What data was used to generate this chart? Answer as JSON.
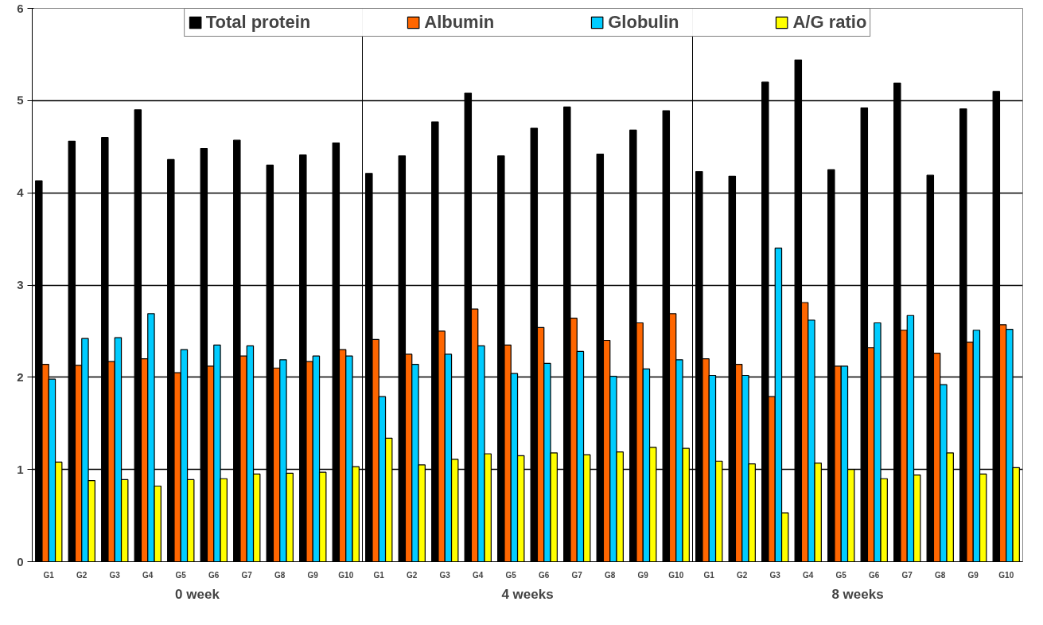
{
  "chart_data": {
    "type": "bar",
    "categories": [
      "G1",
      "G2",
      "G3",
      "G4",
      "G5",
      "G6",
      "G7",
      "G8",
      "G9",
      "G10",
      "G1",
      "G2",
      "G3",
      "G4",
      "G5",
      "G6",
      "G7",
      "G8",
      "G9",
      "G10",
      "G1",
      "G2",
      "G3",
      "G4",
      "G5",
      "G6",
      "G7",
      "G8",
      "G9",
      "G10"
    ],
    "series": [
      {
        "name": "Total protein",
        "color": "#000000",
        "values": [
          4.13,
          4.56,
          4.6,
          4.9,
          4.36,
          4.48,
          4.57,
          4.3,
          4.41,
          4.54,
          4.21,
          4.4,
          4.77,
          5.08,
          4.4,
          4.7,
          4.93,
          4.42,
          4.68,
          4.89,
          4.23,
          4.18,
          5.2,
          5.44,
          4.25,
          4.92,
          5.19,
          4.19,
          4.91,
          5.1
        ]
      },
      {
        "name": "Albumin",
        "color": "#ff6600",
        "values": [
          2.14,
          2.13,
          2.17,
          2.2,
          2.05,
          2.12,
          2.23,
          2.1,
          2.17,
          2.3,
          2.41,
          2.25,
          2.5,
          2.74,
          2.35,
          2.54,
          2.64,
          2.4,
          2.59,
          2.69,
          2.2,
          2.14,
          1.79,
          2.81,
          2.12,
          2.32,
          2.51,
          2.26,
          2.38,
          2.57
        ]
      },
      {
        "name": "Globulin",
        "color": "#00ccff",
        "values": [
          1.98,
          2.42,
          2.43,
          2.69,
          2.3,
          2.35,
          2.34,
          2.19,
          2.23,
          2.23,
          1.79,
          2.14,
          2.25,
          2.34,
          2.04,
          2.15,
          2.28,
          2.01,
          2.09,
          2.19,
          2.02,
          2.02,
          3.4,
          2.62,
          2.12,
          2.59,
          2.67,
          1.92,
          2.51,
          2.52
        ]
      },
      {
        "name": "A/G ratio",
        "color": "#ffff00",
        "values": [
          1.08,
          0.88,
          0.89,
          0.82,
          0.89,
          0.9,
          0.95,
          0.96,
          0.97,
          1.03,
          1.34,
          1.05,
          1.11,
          1.17,
          1.15,
          1.18,
          1.16,
          1.19,
          1.24,
          1.23,
          1.09,
          1.06,
          0.53,
          1.07,
          1.0,
          0.9,
          0.94,
          1.18,
          0.95,
          1.02
        ]
      }
    ],
    "ylim": [
      0,
      6
    ],
    "yticks": [
      0,
      1,
      2,
      3,
      4,
      5,
      6
    ],
    "grid": "y",
    "legend": "top",
    "annotations": [
      "0 week",
      "4 weeks",
      "8 weeks"
    ]
  }
}
